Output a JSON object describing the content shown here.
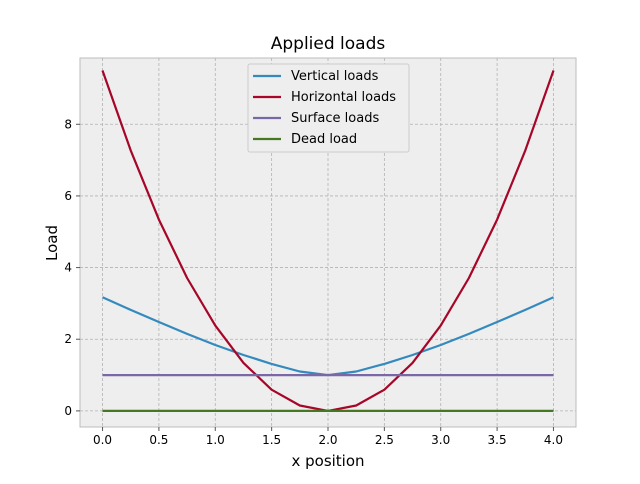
{
  "chart_data": {
    "type": "line",
    "title": "Applied loads",
    "xlabel": "x position",
    "ylabel": "Load",
    "xlim": [
      -0.2,
      4.2
    ],
    "ylim": [
      -0.45,
      9.85
    ],
    "xticks": [
      0.0,
      0.5,
      1.0,
      1.5,
      2.0,
      2.5,
      3.0,
      3.5,
      4.0
    ],
    "xtick_labels": [
      "0.0",
      "0.5",
      "1.0",
      "1.5",
      "2.0",
      "2.5",
      "3.0",
      "3.5",
      "4.0"
    ],
    "yticks": [
      0,
      2,
      4,
      6,
      8
    ],
    "ytick_labels": [
      "0",
      "2",
      "4",
      "6",
      "8"
    ],
    "grid": true,
    "legend_position": "top-center",
    "background": "#eeeeee",
    "x": [
      0.0,
      0.25,
      0.5,
      0.75,
      1.0,
      1.25,
      1.5,
      1.75,
      2.0,
      2.25,
      2.5,
      2.75,
      3.0,
      3.25,
      3.5,
      3.75,
      4.0
    ],
    "series": [
      {
        "name": "Vertical loads",
        "color": "#348abd",
        "values": [
          3.17,
          2.82,
          2.48,
          2.15,
          1.84,
          1.56,
          1.31,
          1.1,
          1.0,
          1.1,
          1.31,
          1.56,
          1.84,
          2.15,
          2.48,
          2.82,
          3.17
        ]
      },
      {
        "name": "Horizontal loads",
        "color": "#a60628",
        "values": [
          9.5,
          7.27,
          5.34,
          3.71,
          2.38,
          1.34,
          0.59,
          0.15,
          0.0,
          0.15,
          0.59,
          1.34,
          2.38,
          3.71,
          5.34,
          7.27,
          9.5
        ]
      },
      {
        "name": "Surface loads",
        "color": "#7a68a6",
        "values": [
          1.0,
          1.0,
          1.0,
          1.0,
          1.0,
          1.0,
          1.0,
          1.0,
          1.0,
          1.0,
          1.0,
          1.0,
          1.0,
          1.0,
          1.0,
          1.0,
          1.0
        ]
      },
      {
        "name": "Dead load",
        "color": "#467821",
        "values": [
          0.0,
          0.0,
          0.0,
          0.0,
          0.0,
          0.0,
          0.0,
          0.0,
          0.0,
          0.0,
          0.0,
          0.0,
          0.0,
          0.0,
          0.0,
          0.0,
          0.0
        ]
      }
    ]
  }
}
